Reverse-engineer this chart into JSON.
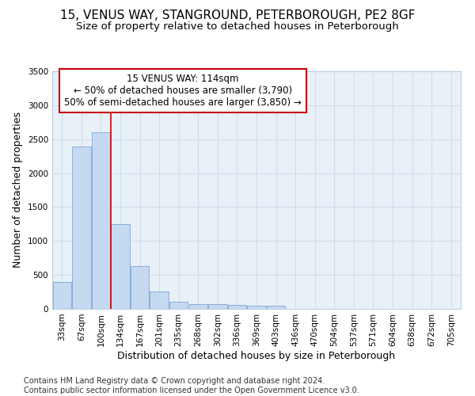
{
  "title1": "15, VENUS WAY, STANGROUND, PETERBOROUGH, PE2 8GF",
  "title2": "Size of property relative to detached houses in Peterborough",
  "xlabel": "Distribution of detached houses by size in Peterborough",
  "ylabel": "Number of detached properties",
  "categories": [
    "33sqm",
    "67sqm",
    "100sqm",
    "134sqm",
    "167sqm",
    "201sqm",
    "235sqm",
    "268sqm",
    "302sqm",
    "336sqm",
    "369sqm",
    "403sqm",
    "436sqm",
    "470sqm",
    "504sqm",
    "537sqm",
    "571sqm",
    "604sqm",
    "638sqm",
    "672sqm",
    "705sqm"
  ],
  "values": [
    400,
    2390,
    2600,
    1250,
    630,
    255,
    110,
    70,
    65,
    55,
    50,
    50,
    0,
    0,
    0,
    0,
    0,
    0,
    0,
    0,
    0
  ],
  "bar_color": "#c5d9f1",
  "bar_edge_color": "#7da6d4",
  "vline_x_index": 2,
  "vline_color": "#cc0000",
  "annotation_text": "15 VENUS WAY: 114sqm\n← 50% of detached houses are smaller (3,790)\n50% of semi-detached houses are larger (3,850) →",
  "annotation_box_color": "#ffffff",
  "annotation_box_edge": "#cc0000",
  "ylim": [
    0,
    3500
  ],
  "yticks": [
    0,
    500,
    1000,
    1500,
    2000,
    2500,
    3000,
    3500
  ],
  "grid_color": "#d0dce8",
  "background_color": "#e8f0f8",
  "footer_text": "Contains HM Land Registry data © Crown copyright and database right 2024.\nContains public sector information licensed under the Open Government Licence v3.0.",
  "title1_fontsize": 11,
  "title2_fontsize": 9.5,
  "label_fontsize": 9,
  "tick_fontsize": 7.5,
  "footer_fontsize": 7
}
